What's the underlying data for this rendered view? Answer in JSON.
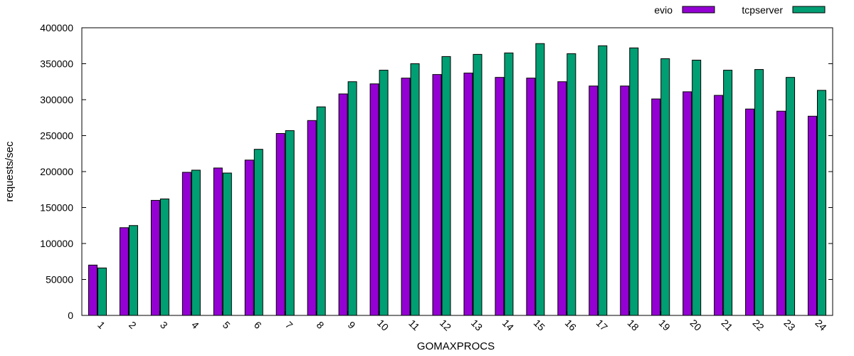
{
  "chart_data": {
    "type": "bar",
    "title": "",
    "xlabel": "GOMAXPROCS",
    "ylabel": "requests/sec",
    "ylim": [
      0,
      400000
    ],
    "yticks": [
      "0",
      "50000",
      "100000",
      "150000",
      "200000",
      "250000",
      "300000",
      "350000",
      "400000"
    ],
    "categories": [
      "1",
      "2",
      "3",
      "4",
      "5",
      "6",
      "7",
      "8",
      "9",
      "10",
      "11",
      "12",
      "13",
      "14",
      "15",
      "16",
      "17",
      "18",
      "19",
      "20",
      "21",
      "22",
      "23",
      "24"
    ],
    "legend_position": "top-right",
    "grid": false,
    "series": [
      {
        "name": "evio",
        "color": "#9400D3",
        "values": [
          70000,
          122000,
          160000,
          199000,
          205000,
          216000,
          253000,
          271000,
          308000,
          322000,
          330000,
          335000,
          337000,
          331000,
          330000,
          325000,
          319000,
          319000,
          301000,
          311000,
          306000,
          287000,
          284000,
          277000
        ]
      },
      {
        "name": "tcpserver",
        "color": "#009E73",
        "values": [
          66000,
          125000,
          162000,
          202000,
          198000,
          231000,
          257000,
          290000,
          325000,
          341000,
          350000,
          360000,
          363000,
          365000,
          378000,
          364000,
          375000,
          372000,
          357000,
          355000,
          341000,
          342000,
          331000,
          313000
        ]
      }
    ]
  }
}
